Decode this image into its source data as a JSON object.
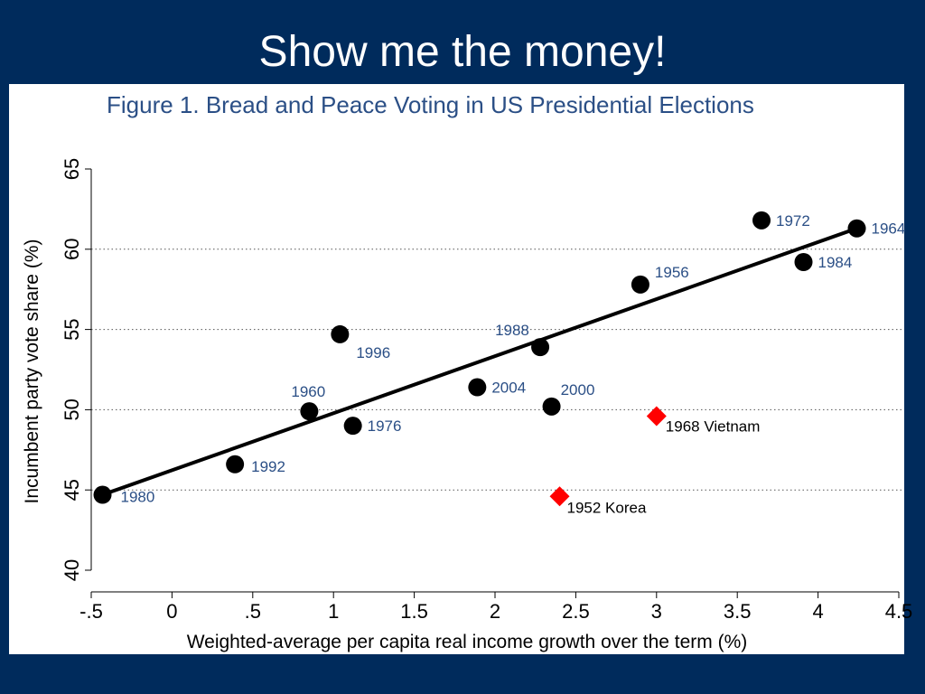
{
  "slide": {
    "title": "Show me the money!"
  },
  "colors": {
    "background": "#002b5c",
    "panel": "#ffffff",
    "figure_title": "#2b4f86",
    "point": "#000000",
    "war_point": "#ff0000",
    "label": "#2b4f86"
  },
  "chart_data": {
    "type": "scatter",
    "title": "Figure 1.  Bread and Peace Voting in US Presidential Elections",
    "xlabel": "Weighted-average per capita real income growth over the term (%)",
    "ylabel": "Incumbent party vote share (%)",
    "xlim": [
      -0.5,
      4.5
    ],
    "ylim": [
      40,
      65
    ],
    "x_ticks": [
      -0.5,
      0,
      0.5,
      1,
      1.5,
      2,
      2.5,
      3,
      3.5,
      4,
      4.5
    ],
    "x_tick_labels": [
      "-.5",
      "0",
      ".5",
      "1",
      "1.5",
      "2",
      "2.5",
      "3",
      "3.5",
      "4",
      "4.5"
    ],
    "y_ticks": [
      40,
      45,
      50,
      55,
      60,
      65
    ],
    "y_tick_labels": [
      "40",
      "45",
      "50",
      "55",
      "60",
      "65"
    ],
    "grid": "horizontal dotted at 45, 50, 55, 60",
    "series": [
      {
        "marker": "circle",
        "color": "#000000",
        "points": [
          {
            "label": "1980",
            "x": -0.43,
            "y": 44.7
          },
          {
            "label": "1992",
            "x": 0.39,
            "y": 46.6
          },
          {
            "label": "1960",
            "x": 0.85,
            "y": 49.9
          },
          {
            "label": "1996",
            "x": 1.04,
            "y": 54.7
          },
          {
            "label": "1976",
            "x": 1.12,
            "y": 49.0
          },
          {
            "label": "2004",
            "x": 1.89,
            "y": 51.4
          },
          {
            "label": "1988",
            "x": 2.28,
            "y": 53.9
          },
          {
            "label": "2000",
            "x": 2.35,
            "y": 50.2
          },
          {
            "label": "1956",
            "x": 2.9,
            "y": 57.8
          },
          {
            "label": "1972",
            "x": 3.65,
            "y": 61.8
          },
          {
            "label": "1984",
            "x": 3.91,
            "y": 59.2
          },
          {
            "label": "1964",
            "x": 4.24,
            "y": 61.3
          }
        ]
      },
      {
        "marker": "diamond",
        "color": "#ff0000",
        "points": [
          {
            "label": "1968 Vietnam",
            "x": 3.0,
            "y": 49.6
          },
          {
            "label": "1952 Korea",
            "x": 2.4,
            "y": 44.6
          }
        ]
      }
    ],
    "fit_line": {
      "x": [
        -0.43,
        4.24
      ],
      "y": [
        44.7,
        61.3
      ]
    }
  }
}
